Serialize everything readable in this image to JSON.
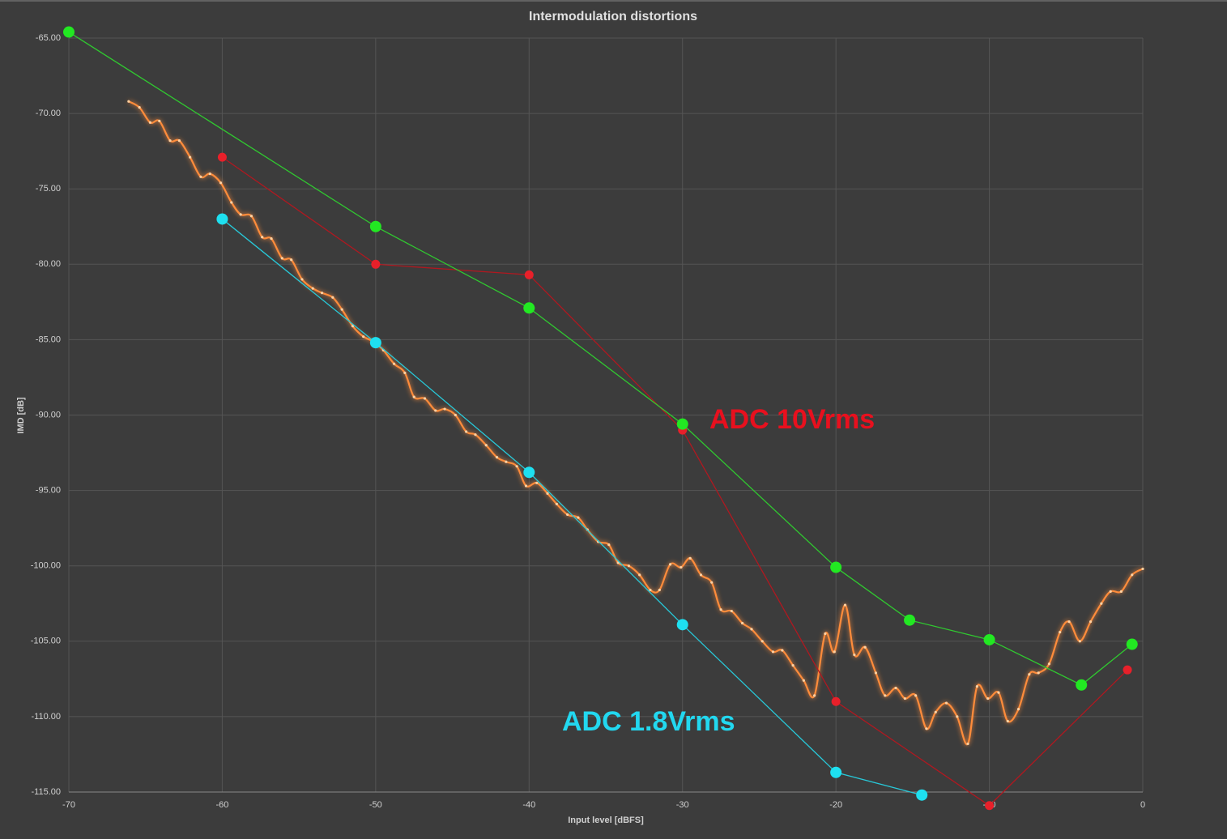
{
  "chart_data": {
    "type": "line",
    "title": "Intermodulation distortions",
    "x_label": "Input level [dBFS]",
    "y_label": "IMD [dB]",
    "xlim": [
      -70,
      0
    ],
    "ylim": [
      -115,
      -65
    ],
    "xticks": [
      -70,
      -60,
      -50,
      -40,
      -30,
      -20,
      -10,
      0
    ],
    "yticks": [
      {
        "value": -65,
        "label": "-65.00"
      },
      {
        "value": -70,
        "label": "-70.00"
      },
      {
        "value": -75,
        "label": "-75.00"
      },
      {
        "value": -80,
        "label": "-80.00"
      },
      {
        "value": -85,
        "label": "-85.00"
      },
      {
        "value": -90,
        "label": "-90.00"
      },
      {
        "value": -95,
        "label": "-95.00"
      },
      {
        "value": -100,
        "label": "-100.00"
      },
      {
        "value": -105,
        "label": "-105.00"
      },
      {
        "value": -110,
        "label": "-110.00"
      },
      {
        "value": -115,
        "label": "-115.00"
      }
    ],
    "grid": true,
    "series": [
      {
        "color": "#ff8c3a",
        "smooth": true,
        "marker_size": 1.6,
        "x": [
          -66.1,
          -65.4,
          -64.7,
          -64.1,
          -63.4,
          -62.8,
          -62.1,
          -61.4,
          -60.8,
          -60.1,
          -59.4,
          -58.8,
          -58.1,
          -57.4,
          -56.8,
          -56.1,
          -55.5,
          -54.8,
          -54.1,
          -53.5,
          -52.8,
          -52.2,
          -51.5,
          -50.8,
          -50.2,
          -49.5,
          -48.8,
          -48.1,
          -47.5,
          -46.8,
          -46.1,
          -45.5,
          -44.8,
          -44.1,
          -43.5,
          -42.8,
          -42.1,
          -41.5,
          -40.8,
          -40.2,
          -39.5,
          -38.8,
          -38.2,
          -37.5,
          -36.8,
          -36.2,
          -35.5,
          -34.8,
          -34.2,
          -33.5,
          -32.8,
          -32.1,
          -31.5,
          -30.8,
          -30.1,
          -29.5,
          -28.8,
          -28.1,
          -27.5,
          -26.8,
          -26.1,
          -25.5,
          -24.8,
          -24.1,
          -23.5,
          -22.8,
          -22.1,
          -21.4,
          -20.7,
          -20.1,
          -19.4,
          -18.8,
          -18.1,
          -17.4,
          -16.8,
          -16.1,
          -15.5,
          -14.8,
          -14.1,
          -13.5,
          -12.8,
          -12.1,
          -11.4,
          -10.8,
          -10.1,
          -9.4,
          -8.8,
          -8.1,
          -7.4,
          -6.8,
          -6.1,
          -5.4,
          -4.8,
          -4.1,
          -3.4,
          -2.7,
          -2.1,
          -1.4,
          -0.7,
          0.0
        ],
        "values": [
          -69.2,
          -69.6,
          -70.6,
          -70.5,
          -71.8,
          -71.8,
          -72.9,
          -74.2,
          -74.0,
          -74.6,
          -75.9,
          -76.7,
          -76.8,
          -78.2,
          -78.3,
          -79.6,
          -79.7,
          -81.0,
          -81.6,
          -81.9,
          -82.2,
          -83.0,
          -84.1,
          -84.8,
          -85.1,
          -85.7,
          -86.6,
          -87.2,
          -88.8,
          -88.9,
          -89.7,
          -89.6,
          -90.0,
          -91.1,
          -91.3,
          -92.0,
          -92.8,
          -93.1,
          -93.4,
          -94.7,
          -94.5,
          -95.2,
          -95.9,
          -96.6,
          -96.8,
          -97.6,
          -98.4,
          -98.6,
          -99.8,
          -100.0,
          -100.6,
          -101.6,
          -101.6,
          -99.9,
          -100.1,
          -99.5,
          -100.6,
          -101.1,
          -102.9,
          -103.0,
          -103.8,
          -104.2,
          -105.0,
          -105.7,
          -105.6,
          -106.6,
          -107.6,
          -108.6,
          -104.5,
          -105.7,
          -102.6,
          -105.9,
          -105.4,
          -107.1,
          -108.6,
          -108.1,
          -108.8,
          -108.6,
          -110.8,
          -109.7,
          -109.1,
          -110.0,
          -111.8,
          -108.0,
          -108.8,
          -108.4,
          -110.3,
          -109.5,
          -107.2,
          -107.1,
          -106.5,
          -104.4,
          -103.7,
          -105.0,
          -103.7,
          -102.5,
          -101.7,
          -101.7,
          -100.6,
          -100.2
        ]
      },
      {
        "color": "#e8202a",
        "line_color": "#b01820",
        "marker_size": 5.5,
        "x": [
          -60,
          -50,
          -40,
          -30,
          -20,
          -10,
          -1
        ],
        "values": [
          -72.9,
          -80.0,
          -80.7,
          -91.0,
          -109.0,
          -115.9,
          -106.9
        ]
      },
      {
        "color": "#22e822",
        "line_color": "#30c830",
        "marker_size": 7,
        "x": [
          -70,
          -50,
          -40,
          -30,
          -20,
          -15.2,
          -10,
          -4,
          -0.7
        ],
        "values": [
          -64.6,
          -77.5,
          -82.9,
          -90.6,
          -100.1,
          -103.6,
          -104.9,
          -107.9,
          -105.2
        ]
      },
      {
        "color": "#1ee0f0",
        "line_color": "#28c8d8",
        "marker_size": 7,
        "x": [
          -60,
          -50,
          -40,
          -30,
          -20,
          -14.4
        ],
        "values": [
          -77.0,
          -85.2,
          -93.8,
          -103.9,
          -113.7,
          -115.2
        ]
      }
    ],
    "annotations": [
      {
        "text": "ADC 10Vrms",
        "color": "#e8101e"
      },
      {
        "text": "ADC 1.8Vrms",
        "color": "#22d8f0"
      }
    ]
  }
}
